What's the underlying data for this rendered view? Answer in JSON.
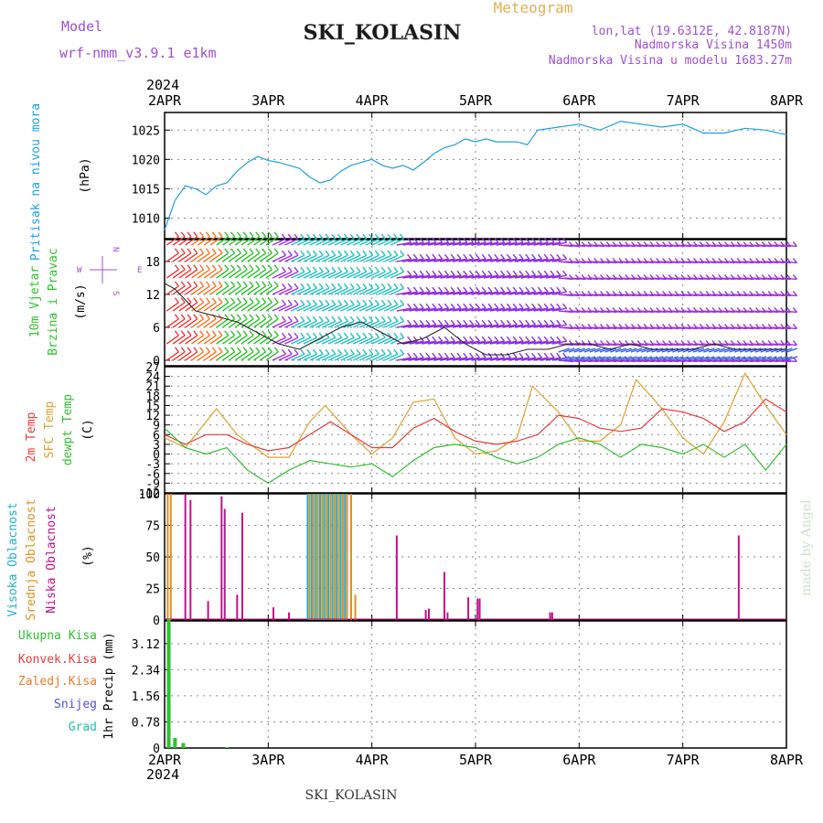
{
  "header": {
    "model_label": "Model",
    "model_name": "wrf-nmm_v3.9.1  e1km",
    "title": "SKI_KOLASIN",
    "subtitle": "Meteogram",
    "lonlat": "lon,lat (19.6312E, 42.8187N)",
    "elev": "Nadmorska Visina 1450m",
    "elev_model": "Nadmorska Visina u modelu 1683.27m",
    "footer": "SKI_KOLASIN",
    "watermark": "made by Angel"
  },
  "time_axis": {
    "year": "2024",
    "labels": [
      "2APR",
      "3APR",
      "4APR",
      "5APR",
      "6APR",
      "7APR",
      "8APR"
    ],
    "range_days": [
      0,
      6
    ]
  },
  "panels": {
    "pressure": {
      "label": "Pritisak na nivou mora",
      "unit": "(hPa)",
      "color": "#1ea0e0"
    },
    "wind": {
      "label1": "10m Vjetar",
      "label2": "Brzina i Pravac",
      "unit": "(m/s)",
      "compass": {
        "n": "N",
        "s": "S",
        "e": "E",
        "w": "W"
      }
    },
    "temp": {
      "label1": "2m Temp",
      "label2": "SFC Temp",
      "label3": "dewpt Temp",
      "unit": "(C)"
    },
    "cloud": {
      "label1": "Visoka Oblacnost",
      "label2": "Srednja Oblacnost",
      "label3": "Niska Oblacnost",
      "unit": "(%)"
    },
    "precip": {
      "l1": "Ukupna Kisa",
      "l2": "Konvek.Kisa",
      "l3": "Zaledj.Kisa",
      "l4": "Snijeg",
      "l5": "Grad",
      "unit": "1hr Precip (mm)"
    }
  },
  "colors": {
    "pressure": "#1ea0e0",
    "t2m": "#e83c3c",
    "sfc": "#e0a030",
    "dewpt": "#30c030",
    "high": "#20b0d0",
    "mid": "#e09020",
    "low": "#c0108c",
    "precip_total": "#30c030",
    "label_model": "#a050d0"
  },
  "chart_data": [
    {
      "type": "line",
      "title": "",
      "ylabel": "Pritisak na nivou mora (hPa)",
      "ylim": [
        1006.5,
        1028
      ],
      "yticks": [
        1010,
        1015,
        1020,
        1025
      ],
      "series": [
        {
          "x": [
            0,
            0.1,
            0.2,
            0.3,
            0.4,
            0.5,
            0.6,
            0.7,
            0.8,
            0.9,
            1.0,
            1.1,
            1.2,
            1.3,
            1.4,
            1.5,
            1.6,
            1.7,
            1.8,
            1.9,
            2.0,
            2.1,
            2.2,
            2.3,
            2.4,
            2.5,
            2.6,
            2.7,
            2.8,
            2.9,
            3.0,
            3.1,
            3.2,
            3.3,
            3.4,
            3.5,
            3.6,
            3.8,
            4.0,
            4.2,
            4.4,
            4.6,
            4.8,
            5.0,
            5.2,
            5.4,
            5.6,
            5.8,
            6.0
          ],
          "values": [
            1008,
            1013,
            1015.5,
            1015,
            1014,
            1015.5,
            1016,
            1018,
            1019.5,
            1020.5,
            1019.8,
            1019.5,
            1019,
            1018.5,
            1017,
            1016,
            1016.5,
            1018,
            1019,
            1019.5,
            1020,
            1019,
            1018.5,
            1019,
            1018.2,
            1019.5,
            1021,
            1022,
            1022.5,
            1023.5,
            1023,
            1023.5,
            1023,
            1023,
            1023,
            1022.5,
            1025,
            1025.5,
            1026,
            1025,
            1026.5,
            1026,
            1025.5,
            1026,
            1024.5,
            1024.5,
            1025.3,
            1025,
            1024.2
          ]
        }
      ]
    },
    {
      "type": "line",
      "title": "",
      "ylabel": "10m Vjetar Brzina i Pravac (m/s)",
      "ylim": [
        -1,
        22
      ],
      "yticks": [
        0,
        6,
        12,
        18
      ],
      "series": [
        {
          "x": [
            0,
            0.1,
            0.2,
            0.3,
            0.5,
            0.7,
            0.9,
            1.1,
            1.3,
            1.5,
            1.7,
            1.9,
            2.1,
            2.3,
            2.5,
            2.7,
            2.9,
            3.1,
            3.3,
            3.5,
            3.7,
            3.9,
            4.1,
            4.3,
            4.5,
            4.7,
            4.9,
            5.1,
            5.3,
            5.5,
            5.7,
            5.9,
            6.0
          ],
          "values": [
            14,
            13,
            11,
            9,
            8,
            7,
            5,
            3,
            2,
            4,
            6,
            7,
            5,
            3,
            4,
            6,
            3,
            1,
            1,
            2,
            2,
            3,
            3,
            2,
            3,
            2,
            2,
            2,
            3,
            2,
            2,
            2,
            2
          ]
        }
      ]
    },
    {
      "type": "line",
      "title": "",
      "ylabel": "Temp (C)",
      "ylim": [
        -12,
        27
      ],
      "yticks": [
        -12,
        -9,
        -6,
        -3,
        0,
        3,
        6,
        9,
        12,
        15,
        18,
        21,
        24,
        27
      ],
      "series": [
        {
          "name": "2m Temp",
          "x": [
            0,
            0.2,
            0.4,
            0.6,
            0.8,
            1.0,
            1.2,
            1.4,
            1.6,
            1.8,
            2.0,
            2.2,
            2.4,
            2.6,
            2.8,
            3.0,
            3.2,
            3.4,
            3.6,
            3.8,
            4.0,
            4.2,
            4.4,
            4.6,
            4.8,
            5.0,
            5.2,
            5.4,
            5.6,
            5.8,
            6.0
          ],
          "values": [
            6,
            3,
            6,
            6,
            3,
            1,
            2,
            6,
            10,
            6,
            2,
            2,
            8,
            11,
            7,
            4,
            3,
            4,
            6,
            12,
            11,
            8,
            7,
            8,
            14,
            13,
            11,
            7,
            10,
            17,
            13
          ]
        },
        {
          "name": "SFC Temp",
          "x": [
            0,
            0.2,
            0.4,
            0.5,
            0.7,
            1.0,
            1.2,
            1.4,
            1.55,
            1.8,
            2.0,
            2.2,
            2.4,
            2.6,
            2.8,
            3.0,
            3.2,
            3.4,
            3.55,
            3.8,
            4.0,
            4.2,
            4.4,
            4.55,
            4.8,
            5.0,
            5.2,
            5.4,
            5.6,
            5.8,
            6.0
          ],
          "values": [
            5,
            2,
            10,
            14,
            6,
            -1,
            -1,
            10,
            15,
            6,
            0,
            5,
            16,
            17,
            5,
            0,
            1,
            5,
            21,
            13,
            4,
            4,
            9,
            23,
            14,
            5,
            0,
            10,
            25,
            15,
            6
          ]
        },
        {
          "name": "dewpt Temp",
          "x": [
            0,
            0.2,
            0.4,
            0.6,
            0.8,
            1.0,
            1.2,
            1.4,
            1.6,
            1.8,
            2.0,
            2.2,
            2.4,
            2.6,
            2.8,
            3.0,
            3.2,
            3.4,
            3.6,
            3.8,
            4.0,
            4.2,
            4.4,
            4.6,
            4.8,
            5.0,
            5.2,
            5.4,
            5.6,
            5.8,
            6.0
          ],
          "values": [
            8,
            2,
            0,
            2,
            -5,
            -9,
            -5,
            -2,
            -3,
            -4,
            -3,
            -7,
            -2,
            2,
            3,
            2,
            -1,
            -3,
            -1,
            3,
            5,
            3,
            -1,
            3,
            2,
            0,
            3,
            -1,
            3,
            -5,
            3
          ]
        }
      ]
    },
    {
      "type": "bar",
      "title": "",
      "ylabel": "Oblacnost (%)",
      "ylim": [
        0,
        100
      ],
      "yticks": [
        0,
        25,
        50,
        75,
        100
      ],
      "series": [
        {
          "name": "Visoka Oblacnost",
          "x": [
            1.38,
            1.42,
            1.46,
            1.5,
            1.54,
            1.58,
            1.62,
            1.66,
            1.7,
            1.74
          ],
          "values": [
            100,
            100,
            100,
            100,
            100,
            100,
            100,
            100,
            100,
            100
          ]
        },
        {
          "name": "Srednja Oblacnost",
          "x": [
            0.03,
            0.06,
            1.4,
            1.44,
            1.48,
            1.52,
            1.56,
            1.6,
            1.64,
            1.68,
            1.72,
            1.76,
            1.8,
            1.84
          ],
          "values": [
            100,
            100,
            100,
            100,
            100,
            100,
            100,
            100,
            100,
            100,
            100,
            100,
            100,
            20
          ]
        },
        {
          "name": "Niska Oblacnost",
          "x": [
            0.2,
            0.25,
            0.42,
            0.55,
            0.58,
            0.7,
            0.75,
            1.05,
            1.2,
            2.24,
            2.52,
            2.55,
            2.7,
            2.73,
            2.93,
            3.02,
            3.04,
            3.72,
            3.74,
            5.54
          ],
          "values": [
            100,
            95,
            15,
            98,
            88,
            20,
            85,
            10,
            6,
            67,
            8,
            9,
            38,
            6,
            18,
            17,
            17,
            6,
            6,
            67
          ]
        }
      ]
    },
    {
      "type": "bar",
      "title": "",
      "ylabel": "1hr Precip (mm)",
      "ylim": [
        0,
        3.8
      ],
      "yticks": [
        0,
        0.78,
        1.56,
        2.34,
        3.12
      ],
      "series": [
        {
          "name": "Ukupna Kisa",
          "x": [
            0.04,
            0.1,
            0.18,
            0.6
          ],
          "values": [
            3.85,
            0.3,
            0.15,
            0.02
          ]
        }
      ]
    }
  ]
}
